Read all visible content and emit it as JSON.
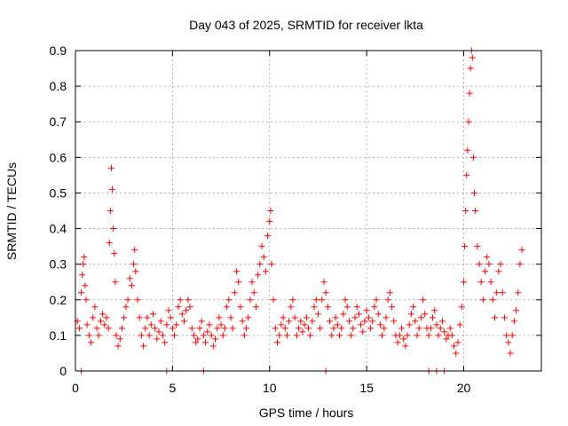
{
  "chart_data": {
    "type": "scatter",
    "title": "Day 043 of 2025, SRMTID for receiver lkta",
    "xlabel": "GPS time / hours",
    "ylabel": "SRMTID / TECUs",
    "xlim": [
      0,
      24
    ],
    "ylim": [
      0,
      0.9
    ],
    "xticks": [
      0,
      5,
      10,
      15,
      20
    ],
    "xtick_labels": [
      "0",
      "5",
      "10",
      "15",
      "20"
    ],
    "yticks": [
      0,
      0.1,
      0.2,
      0.3,
      0.4,
      0.5,
      0.6,
      0.7,
      0.8,
      0.9
    ],
    "ytick_labels": [
      "0",
      "0.1",
      "0.2",
      "0.3",
      "0.4",
      "0.5",
      "0.6",
      "0.7",
      "0.8",
      "0.9"
    ],
    "grid": true,
    "marker": "+",
    "color": "#ff0000",
    "series": [
      {
        "name": "SRMTID",
        "points": [
          [
            0.1,
            0.14
          ],
          [
            0.2,
            0.12
          ],
          [
            0.3,
            0.22
          ],
          [
            0.35,
            0.27
          ],
          [
            0.4,
            0.3
          ],
          [
            0.45,
            0.32
          ],
          [
            0.5,
            0.24
          ],
          [
            0.55,
            0.2
          ],
          [
            0.6,
            0.13
          ],
          [
            0.7,
            0.1
          ],
          [
            0.8,
            0.08
          ],
          [
            0.9,
            0.15
          ],
          [
            1.0,
            0.18
          ],
          [
            1.1,
            0.12
          ],
          [
            1.2,
            0.1
          ],
          [
            1.3,
            0.14
          ],
          [
            1.4,
            0.16
          ],
          [
            1.5,
            0.13
          ],
          [
            1.6,
            0.15
          ],
          [
            1.7,
            0.12
          ],
          [
            1.75,
            0.36
          ],
          [
            1.8,
            0.45
          ],
          [
            1.85,
            0.57
          ],
          [
            1.9,
            0.51
          ],
          [
            1.95,
            0.4
          ],
          [
            2.0,
            0.33
          ],
          [
            2.05,
            0.25
          ],
          [
            2.1,
            0.1
          ],
          [
            2.2,
            0.07
          ],
          [
            2.3,
            0.09
          ],
          [
            2.4,
            0.12
          ],
          [
            2.5,
            0.15
          ],
          [
            2.6,
            0.18
          ],
          [
            2.7,
            0.2
          ],
          [
            2.8,
            0.26
          ],
          [
            2.9,
            0.24
          ],
          [
            3.0,
            0.3
          ],
          [
            3.05,
            0.34
          ],
          [
            3.1,
            0.28
          ],
          [
            3.2,
            0.2
          ],
          [
            3.3,
            0.15
          ],
          [
            3.4,
            0.1
          ],
          [
            3.5,
            0.07
          ],
          [
            3.6,
            0.12
          ],
          [
            3.7,
            0.15
          ],
          [
            3.8,
            0.1
          ],
          [
            3.9,
            0.13
          ],
          [
            4.0,
            0.16
          ],
          [
            4.1,
            0.12
          ],
          [
            4.2,
            0.09
          ],
          [
            4.3,
            0.11
          ],
          [
            4.4,
            0.14
          ],
          [
            4.5,
            0.1
          ],
          [
            4.6,
            0.08
          ],
          [
            4.7,
            0.13
          ],
          [
            4.8,
            0.17
          ],
          [
            4.9,
            0.15
          ],
          [
            5.0,
            0.12
          ],
          [
            5.1,
            0.1
          ],
          [
            5.2,
            0.13
          ],
          [
            5.3,
            0.18
          ],
          [
            5.4,
            0.2
          ],
          [
            5.5,
            0.16
          ],
          [
            5.6,
            0.14
          ],
          [
            5.7,
            0.17
          ],
          [
            5.8,
            0.2
          ],
          [
            5.9,
            0.18
          ],
          [
            6.0,
            0.12
          ],
          [
            6.1,
            0.1
          ],
          [
            6.2,
            0.08
          ],
          [
            6.3,
            0.09
          ],
          [
            6.4,
            0.12
          ],
          [
            6.5,
            0.14
          ],
          [
            6.6,
            0.1
          ],
          [
            6.7,
            0.08
          ],
          [
            6.8,
            0.11
          ],
          [
            6.9,
            0.13
          ],
          [
            7.0,
            0.1
          ],
          [
            7.1,
            0.07
          ],
          [
            7.2,
            0.09
          ],
          [
            7.3,
            0.12
          ],
          [
            7.4,
            0.15
          ],
          [
            7.5,
            0.13
          ],
          [
            7.6,
            0.1
          ],
          [
            7.7,
            0.12
          ],
          [
            7.8,
            0.18
          ],
          [
            7.9,
            0.2
          ],
          [
            8.0,
            0.15
          ],
          [
            8.1,
            0.12
          ],
          [
            8.2,
            0.22
          ],
          [
            8.3,
            0.28
          ],
          [
            8.4,
            0.25
          ],
          [
            8.5,
            0.18
          ],
          [
            8.6,
            0.14
          ],
          [
            8.7,
            0.1
          ],
          [
            8.8,
            0.12
          ],
          [
            8.9,
            0.15
          ],
          [
            9.0,
            0.2
          ],
          [
            9.1,
            0.25
          ],
          [
            9.2,
            0.22
          ],
          [
            9.3,
            0.18
          ],
          [
            9.4,
            0.27
          ],
          [
            9.5,
            0.3
          ],
          [
            9.6,
            0.35
          ],
          [
            9.7,
            0.32
          ],
          [
            9.8,
            0.28
          ],
          [
            9.9,
            0.38
          ],
          [
            10.0,
            0.42
          ],
          [
            10.05,
            0.45
          ],
          [
            10.1,
            0.3
          ],
          [
            10.2,
            0.2
          ],
          [
            10.3,
            0.12
          ],
          [
            10.4,
            0.08
          ],
          [
            10.5,
            0.1
          ],
          [
            10.6,
            0.13
          ],
          [
            10.7,
            0.15
          ],
          [
            10.8,
            0.12
          ],
          [
            10.9,
            0.1
          ],
          [
            11.0,
            0.14
          ],
          [
            11.1,
            0.18
          ],
          [
            11.2,
            0.2
          ],
          [
            11.3,
            0.15
          ],
          [
            11.4,
            0.1
          ],
          [
            11.5,
            0.12
          ],
          [
            11.6,
            0.14
          ],
          [
            11.7,
            0.11
          ],
          [
            11.8,
            0.13
          ],
          [
            11.9,
            0.15
          ],
          [
            12.0,
            0.12
          ],
          [
            12.1,
            0.1
          ],
          [
            12.2,
            0.14
          ],
          [
            12.3,
            0.18
          ],
          [
            12.4,
            0.2
          ],
          [
            12.5,
            0.16
          ],
          [
            12.6,
            0.12
          ],
          [
            12.7,
            0.2
          ],
          [
            12.8,
            0.25
          ],
          [
            12.9,
            0.22
          ],
          [
            13.0,
            0.18
          ],
          [
            13.1,
            0.14
          ],
          [
            13.2,
            0.1
          ],
          [
            13.3,
            0.12
          ],
          [
            13.4,
            0.15
          ],
          [
            13.5,
            0.13
          ],
          [
            13.6,
            0.1
          ],
          [
            13.7,
            0.12
          ],
          [
            13.8,
            0.16
          ],
          [
            13.9,
            0.2
          ],
          [
            14.0,
            0.18
          ],
          [
            14.1,
            0.14
          ],
          [
            14.2,
            0.1
          ],
          [
            14.3,
            0.12
          ],
          [
            14.4,
            0.15
          ],
          [
            14.5,
            0.18
          ],
          [
            14.6,
            0.16
          ],
          [
            14.7,
            0.13
          ],
          [
            14.8,
            0.11
          ],
          [
            14.9,
            0.14
          ],
          [
            15.0,
            0.17
          ],
          [
            15.1,
            0.15
          ],
          [
            15.2,
            0.12
          ],
          [
            15.3,
            0.14
          ],
          [
            15.4,
            0.18
          ],
          [
            15.5,
            0.2
          ],
          [
            15.6,
            0.16
          ],
          [
            15.7,
            0.13
          ],
          [
            15.8,
            0.1
          ],
          [
            15.9,
            0.12
          ],
          [
            16.0,
            0.15
          ],
          [
            16.1,
            0.2
          ],
          [
            16.2,
            0.22
          ],
          [
            16.3,
            0.18
          ],
          [
            16.4,
            0.14
          ],
          [
            16.5,
            0.1
          ],
          [
            16.6,
            0.08
          ],
          [
            16.7,
            0.1
          ],
          [
            16.8,
            0.12
          ],
          [
            16.9,
            0.09
          ],
          [
            17.0,
            0.07
          ],
          [
            17.1,
            0.1
          ],
          [
            17.2,
            0.13
          ],
          [
            17.3,
            0.16
          ],
          [
            17.4,
            0.18
          ],
          [
            17.5,
            0.14
          ],
          [
            17.6,
            0.1
          ],
          [
            17.7,
            0.12
          ],
          [
            17.8,
            0.15
          ],
          [
            17.9,
            0.2
          ],
          [
            18.0,
            0.16
          ],
          [
            18.1,
            0.12
          ],
          [
            18.2,
            0.1
          ],
          [
            18.3,
            0.12
          ],
          [
            18.4,
            0.15
          ],
          [
            18.5,
            0.17
          ],
          [
            18.6,
            0.13
          ],
          [
            18.7,
            0.1
          ],
          [
            18.8,
            0.12
          ],
          [
            18.9,
            0.14
          ],
          [
            19.0,
            0.11
          ],
          [
            19.1,
            0.09
          ],
          [
            19.2,
            0.1
          ],
          [
            19.3,
            0.12
          ],
          [
            19.4,
            0.1
          ],
          [
            19.5,
            0.07
          ],
          [
            19.6,
            0.05
          ],
          [
            19.7,
            0.08
          ],
          [
            19.8,
            0.13
          ],
          [
            19.9,
            0.18
          ],
          [
            20.0,
            0.25
          ],
          [
            20.05,
            0.35
          ],
          [
            20.1,
            0.45
          ],
          [
            20.15,
            0.55
          ],
          [
            20.2,
            0.62
          ],
          [
            20.25,
            0.7
          ],
          [
            20.3,
            0.78
          ],
          [
            20.35,
            0.85
          ],
          [
            20.4,
            0.9
          ],
          [
            20.45,
            0.88
          ],
          [
            20.5,
            0.6
          ],
          [
            20.55,
            0.5
          ],
          [
            20.6,
            0.45
          ],
          [
            20.7,
            0.35
          ],
          [
            20.8,
            0.3
          ],
          [
            20.9,
            0.25
          ],
          [
            21.0,
            0.2
          ],
          [
            21.1,
            0.28
          ],
          [
            21.2,
            0.32
          ],
          [
            21.3,
            0.3
          ],
          [
            21.4,
            0.25
          ],
          [
            21.5,
            0.2
          ],
          [
            21.6,
            0.15
          ],
          [
            21.7,
            0.22
          ],
          [
            21.8,
            0.28
          ],
          [
            21.9,
            0.3
          ],
          [
            22.0,
            0.22
          ],
          [
            22.1,
            0.15
          ],
          [
            22.2,
            0.1
          ],
          [
            22.3,
            0.08
          ],
          [
            22.4,
            0.05
          ],
          [
            22.5,
            0.1
          ],
          [
            22.6,
            0.14
          ],
          [
            22.7,
            0.17
          ],
          [
            22.8,
            0.22
          ],
          [
            22.9,
            0.3
          ],
          [
            23.0,
            0.34
          ]
        ]
      }
    ],
    "zero_points": [
      0.3,
      4.7,
      6.6,
      12.9,
      18.2,
      18.6,
      19.0
    ]
  }
}
